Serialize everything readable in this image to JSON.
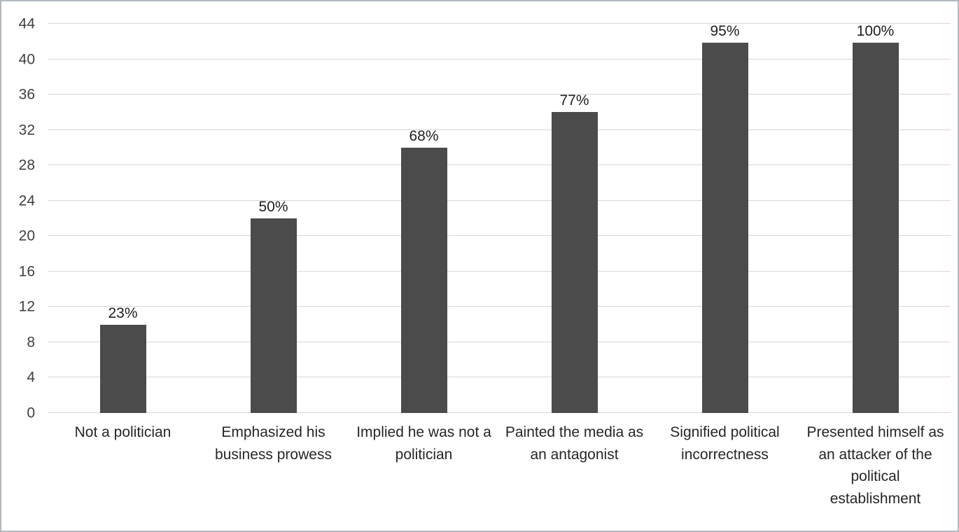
{
  "chart_data": {
    "type": "bar",
    "title": "",
    "xlabel": "",
    "ylabel": "",
    "categories": [
      "Not a politician",
      "Emphasized his business prowess",
      "Implied he was not a politician",
      "Painted the media as an antagonist",
      "Signified political incorrectness",
      "Presented himself as an attacker of the political establishment"
    ],
    "values": [
      10,
      22,
      30,
      34,
      42,
      44
    ],
    "data_labels": [
      "23%",
      "50%",
      "68%",
      "77%",
      "95%",
      "100%"
    ],
    "ylim": [
      0,
      44
    ],
    "ytick_step": 4,
    "ytick_labels": [
      "0",
      "4",
      "8",
      "12",
      "16",
      "20",
      "24",
      "28",
      "32",
      "36",
      "40",
      "44"
    ],
    "grid": true,
    "legend": false,
    "bar_color": "#4b4b4b",
    "gridline_color": "#d6d6d6",
    "frame_border_color": "#b3b9bf"
  }
}
